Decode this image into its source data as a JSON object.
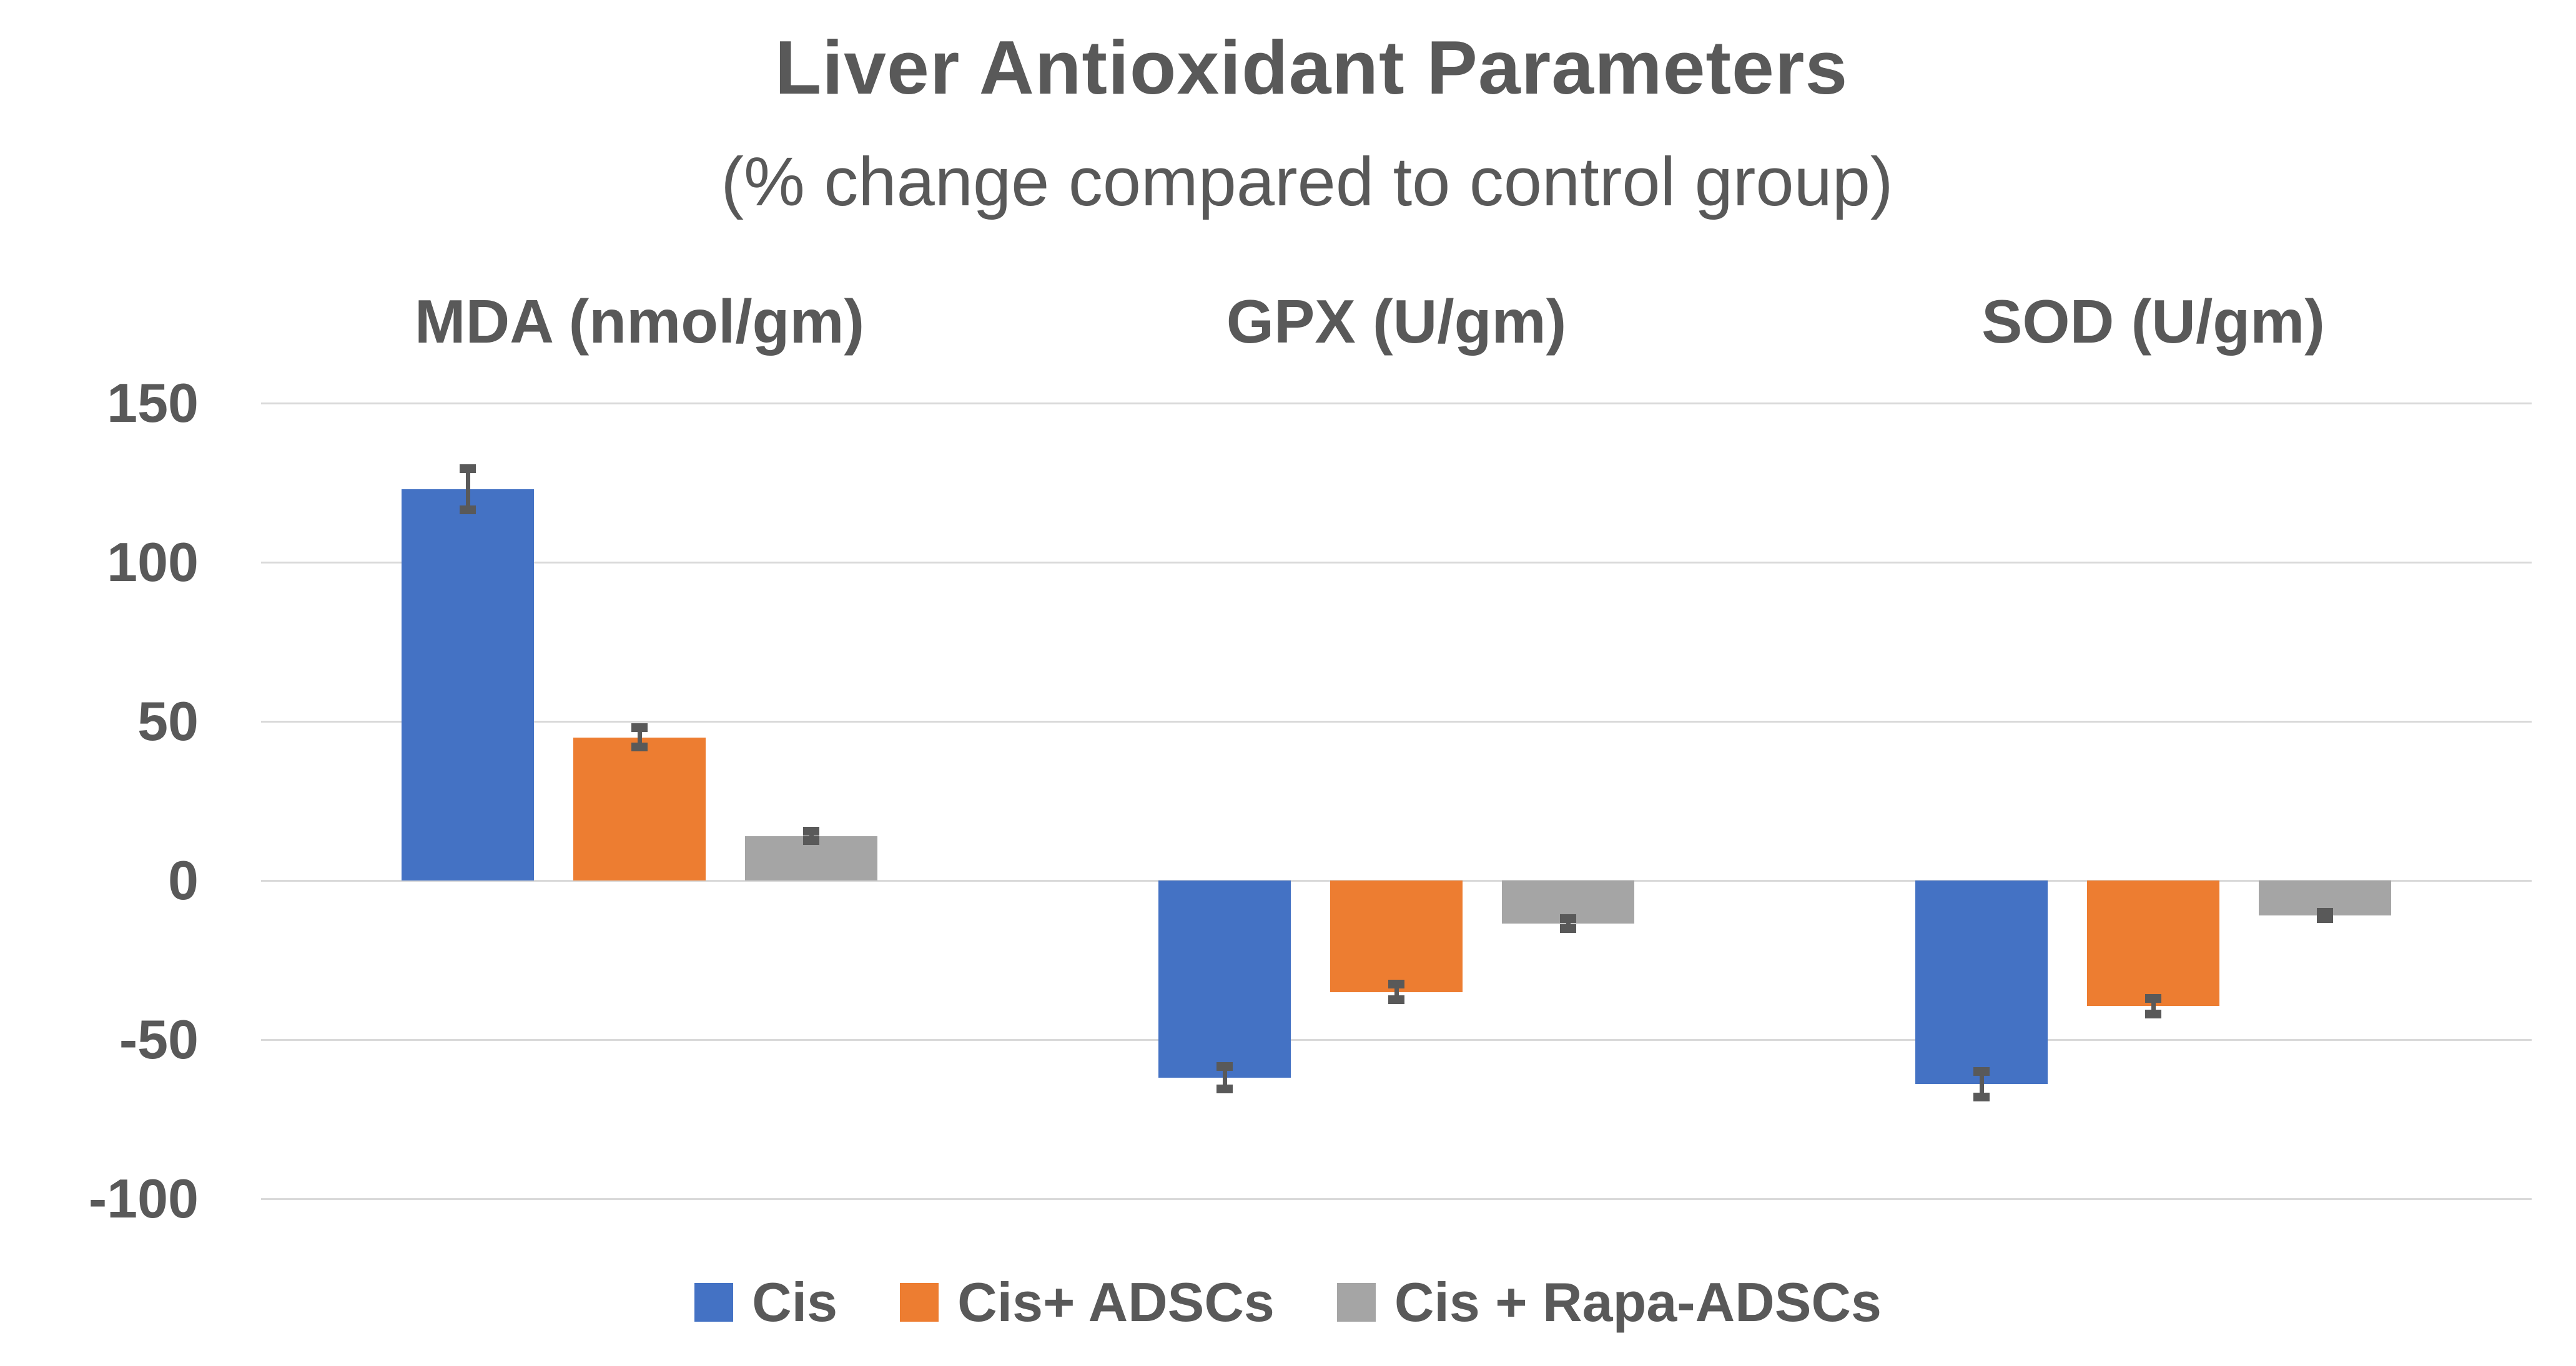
{
  "chart_data": {
    "type": "bar",
    "title": "Liver Antioxidant Parameters",
    "subtitle": "(% change compared to control group)",
    "categories": [
      "MDA (nmol/gm)",
      "GPX (U/gm)",
      "SOD (U/gm)"
    ],
    "series": [
      {
        "name": "Cis",
        "color": "#4472C4",
        "values": [
          123,
          -62,
          -64
        ],
        "errors": [
          6.5,
          3.5,
          4
        ]
      },
      {
        "name": "Cis+ ADSCs",
        "color": "#ED7D31",
        "values": [
          45,
          -35,
          -39.5
        ],
        "errors": [
          3,
          2.5,
          2.5
        ]
      },
      {
        "name": "Cis + Rapa-ADSCs",
        "color": "#A5A5A5",
        "values": [
          14,
          -13.5,
          -11
        ],
        "errors": [
          1.5,
          1.5,
          1
        ]
      }
    ],
    "ylim": [
      -100,
      150
    ],
    "yticks": [
      150,
      100,
      50,
      0,
      -50,
      -100
    ],
    "xlabel": "",
    "ylabel": "",
    "grid": true,
    "legend_position": "bottom",
    "colors": {
      "text": "#595959",
      "gridline": "#D9D9D9",
      "error_bar": "#595959",
      "background": "#FFFFFF"
    }
  }
}
